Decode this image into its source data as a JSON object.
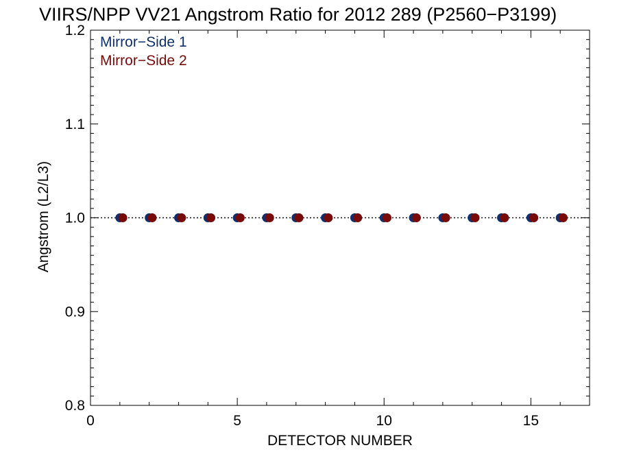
{
  "chart_data": {
    "type": "scatter",
    "title": "VIIRS/NPP VV21 Angstrom Ratio for 2012 289 (P2560−P3199)",
    "xlabel": "DETECTOR NUMBER",
    "ylabel": "Angstrom (L2/L3)",
    "xlim": [
      0,
      17
    ],
    "ylim": [
      0.8,
      1.2
    ],
    "xticks": [
      0,
      5,
      10,
      15
    ],
    "xtick_labels": [
      "0",
      "5",
      "10",
      "15"
    ],
    "yticks": [
      0.8,
      0.9,
      1.0,
      1.1,
      1.2
    ],
    "ytick_labels": [
      "0.8",
      "0.9",
      "1.0",
      "1.1",
      "1.2"
    ],
    "reference_line": {
      "y": 1.0,
      "style": "dotted"
    },
    "grid": false,
    "legend_position": "top-left",
    "series": [
      {
        "name": "Mirror−Side 1",
        "color": "#0f2f6e",
        "x": [
          1,
          2,
          3,
          4,
          5,
          6,
          7,
          8,
          9,
          10,
          11,
          12,
          13,
          14,
          15,
          16
        ],
        "y": [
          1.0,
          1.0,
          1.0,
          1.0,
          1.0,
          1.0,
          1.0,
          1.0,
          1.0,
          1.0,
          1.0,
          1.0,
          1.0,
          1.0,
          1.0,
          1.0
        ]
      },
      {
        "name": "Mirror−Side 2",
        "color": "#780a0a",
        "x": [
          1.1,
          2.1,
          3.1,
          4.1,
          5.1,
          6.1,
          7.1,
          8.1,
          9.1,
          10.1,
          11.1,
          12.1,
          13.1,
          14.1,
          15.1,
          16.1
        ],
        "y": [
          1.0,
          1.0,
          1.0,
          1.0,
          1.0,
          1.0,
          1.0,
          1.0,
          1.0,
          1.0,
          1.0,
          1.0,
          1.0,
          1.0,
          1.0,
          1.0
        ]
      }
    ]
  }
}
